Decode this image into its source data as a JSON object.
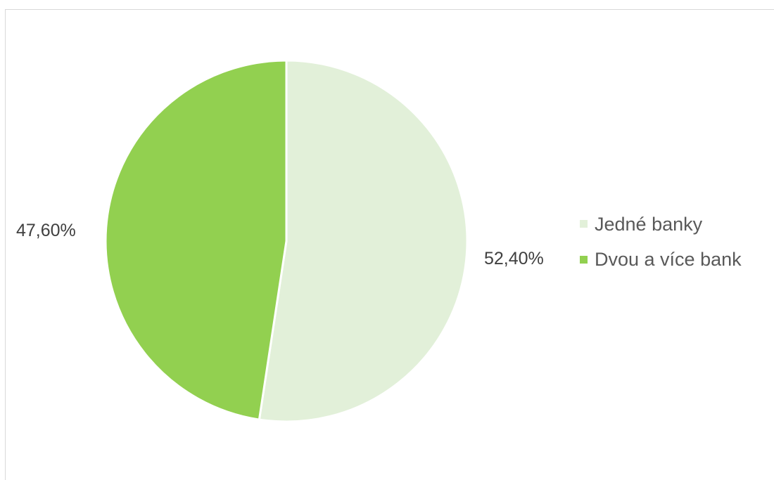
{
  "chart_data": {
    "type": "pie",
    "title": "",
    "slices": [
      {
        "name": "Jedné banky",
        "value": 52.4,
        "label": "52,40%",
        "color": "#e2f0d9"
      },
      {
        "name": "Dvou a více bank",
        "value": 47.6,
        "label": "47,60%",
        "color": "#92d050"
      }
    ],
    "legend": "right"
  }
}
